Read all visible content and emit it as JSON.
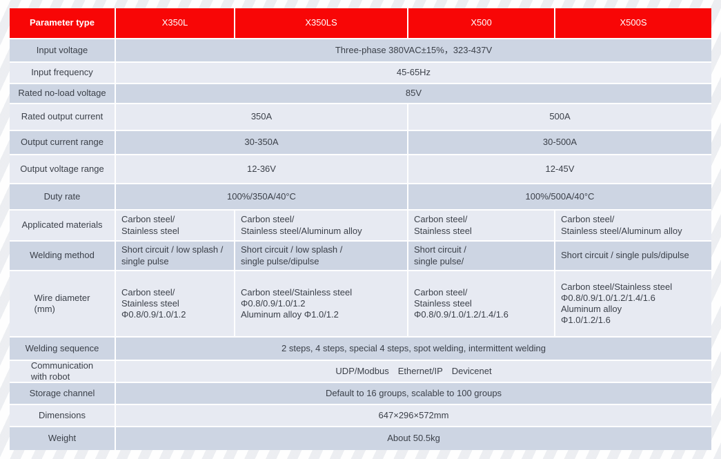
{
  "colors": {
    "header_red": "#f80606",
    "row_dark": "#cdd5e3",
    "row_light": "#e7eaf2",
    "grid_line": "#ffffff",
    "text": "#3b4049"
  },
  "header": {
    "param_label": "Parameter type",
    "models": [
      {
        "label": "X350L"
      },
      {
        "label": "X350LS"
      },
      {
        "label": "X500"
      },
      {
        "label": "X500S"
      }
    ]
  },
  "rows": [
    {
      "label": "Input voltage",
      "cells": [
        {
          "text": "Three-phase 380VAC±15%，323-437V"
        }
      ]
    },
    {
      "label": "Input frequency",
      "cells": [
        {
          "text": "45-65Hz"
        }
      ]
    },
    {
      "label": "Rated no-load voltage",
      "cells": [
        {
          "text": "85V"
        }
      ]
    },
    {
      "label": "Rated output current",
      "cells": [
        {
          "text": "350A"
        },
        {
          "text": "500A"
        }
      ]
    },
    {
      "label": "Output current range",
      "cells": [
        {
          "text": "30-350A"
        },
        {
          "text": "30-500A"
        }
      ]
    },
    {
      "label": "Output voltage range",
      "cells": [
        {
          "text": "12-36V"
        },
        {
          "text": "12-45V"
        }
      ]
    },
    {
      "label": "Duty rate",
      "cells": [
        {
          "text": "100%/350A/40°C"
        },
        {
          "text": "100%/500A/40°C"
        }
      ]
    },
    {
      "label": "Applicated  materials",
      "cells": [
        {
          "text": "Carbon steel/\nStainless steel"
        },
        {
          "text": "Carbon steel/\nStainless steel/Aluminum alloy"
        },
        {
          "text": "Carbon steel/\nStainless steel"
        },
        {
          "text": "Carbon steel/\nStainless steel/Aluminum alloy"
        }
      ]
    },
    {
      "label": "Welding method",
      "cells": [
        {
          "text": "Short circuit / low splash /\nsingle pulse"
        },
        {
          "text": "Short circuit / low splash /\nsingle pulse/dipulse"
        },
        {
          "text": "Short circuit /\nsingle pulse/"
        },
        {
          "text": "Short circuit / single puls/dipulse"
        }
      ]
    },
    {
      "label": "Wire diameter\n(mm)",
      "cells": [
        {
          "text": "Carbon steel/\nStainless steel\nΦ0.8/0.9/1.0/1.2"
        },
        {
          "text": "Carbon steel/Stainless steel\nΦ0.8/0.9/1.0/1.2\nAluminum alloy Φ1.0/1.2"
        },
        {
          "text": "Carbon steel/\nStainless steel\nΦ0.8/0.9/1.0/1.2/1.4/1.6"
        },
        {
          "text": "Carbon steel/Stainless steel\nΦ0.8/0.9/1.0/1.2/1.4/1.6\nAluminum alloy\nΦ1.0/1.2/1.6"
        }
      ]
    },
    {
      "label": "Welding sequence",
      "cells": [
        {
          "text": "2 steps, 4 steps, special 4 steps, spot welding, intermittent welding"
        }
      ]
    },
    {
      "label": "Communication\nwith robot",
      "cells": [
        {
          "text": "UDP/Modbus Ethernet/IP Devicenet"
        }
      ]
    },
    {
      "label": "Storage channel",
      "cells": [
        {
          "text": "Default to 16 groups, scalable to 100 groups"
        }
      ]
    },
    {
      "label": "Dimensions",
      "cells": [
        {
          "text": "647×296×572mm"
        }
      ]
    },
    {
      "label": "Weight",
      "cells": [
        {
          "text": "About 50.5kg"
        }
      ]
    }
  ]
}
